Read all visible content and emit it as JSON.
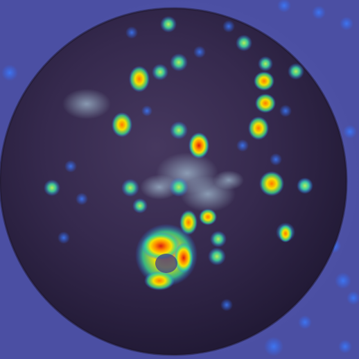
{
  "image": {
    "subject": "fruit-with-heatmap-overlay",
    "colors": {
      "background": "#5a5fb0",
      "fruit_dark": "#2a2240",
      "fruit_mid": "#3c2f55",
      "heat_low": "#2f6cff",
      "heat_mid": "#3fe08a",
      "heat_high": "#ffd400",
      "heat_peak": "#e0281a"
    }
  }
}
